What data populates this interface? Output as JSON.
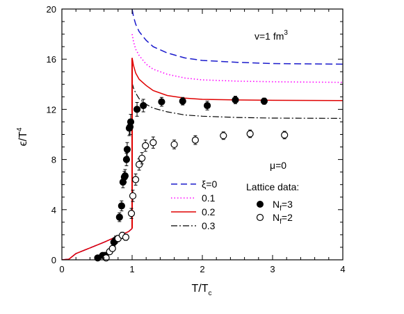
{
  "chart_data": {
    "type": "line",
    "xlabel": "T/T",
    "xlabel_sub": "c",
    "ylabel": "ϵ/T",
    "ylabel_sup": "4",
    "xlim": [
      0,
      4
    ],
    "ylim": [
      0,
      20
    ],
    "xticks": [
      0,
      1,
      2,
      3,
      4
    ],
    "yticks": [
      0,
      4,
      8,
      12,
      16,
      20
    ],
    "grid": false,
    "annotations": {
      "volume": {
        "prefix": "v=1 fm",
        "sup": "3"
      },
      "mu": "μ=0",
      "lattice_title": "Lattice data:"
    },
    "series": [
      {
        "name": "ξ=0",
        "style": "dashed",
        "color": "#1a1acc",
        "below": [
          [
            0.0,
            0.0
          ],
          [
            0.1,
            0.05
          ],
          [
            0.2,
            0.5
          ],
          [
            0.4,
            0.95
          ],
          [
            0.6,
            1.4
          ],
          [
            0.8,
            1.9
          ],
          [
            0.95,
            2.25
          ],
          [
            1.0,
            2.5
          ]
        ],
        "above": [
          [
            1.0,
            20.0
          ],
          [
            1.02,
            19.4
          ],
          [
            1.05,
            18.8
          ],
          [
            1.1,
            18.2
          ],
          [
            1.2,
            17.5
          ],
          [
            1.3,
            17.0
          ],
          [
            1.5,
            16.5
          ],
          [
            1.75,
            16.1
          ],
          [
            2.0,
            15.9
          ],
          [
            2.5,
            15.75
          ],
          [
            3.0,
            15.65
          ],
          [
            4.0,
            15.6
          ]
        ]
      },
      {
        "name": "0.1",
        "style": "dotted",
        "color": "#ff00ff",
        "below": [
          [
            0.0,
            0.0
          ],
          [
            0.1,
            0.05
          ],
          [
            0.2,
            0.5
          ],
          [
            0.4,
            0.95
          ],
          [
            0.6,
            1.4
          ],
          [
            0.8,
            1.9
          ],
          [
            0.95,
            2.25
          ],
          [
            1.0,
            2.5
          ]
        ],
        "above": [
          [
            1.0,
            18.0
          ],
          [
            1.02,
            17.4
          ],
          [
            1.05,
            16.8
          ],
          [
            1.1,
            16.3
          ],
          [
            1.2,
            15.6
          ],
          [
            1.3,
            15.2
          ],
          [
            1.5,
            14.8
          ],
          [
            1.75,
            14.5
          ],
          [
            2.0,
            14.35
          ],
          [
            2.5,
            14.25
          ],
          [
            3.0,
            14.2
          ],
          [
            4.0,
            14.15
          ]
        ]
      },
      {
        "name": "0.2",
        "style": "solid",
        "color": "#e00000",
        "below": [
          [
            0.0,
            0.0
          ],
          [
            0.1,
            0.05
          ],
          [
            0.2,
            0.5
          ],
          [
            0.4,
            0.95
          ],
          [
            0.6,
            1.4
          ],
          [
            0.8,
            1.9
          ],
          [
            0.95,
            2.25
          ],
          [
            1.0,
            2.5
          ]
        ],
        "above": [
          [
            1.0,
            16.1
          ],
          [
            1.02,
            15.5
          ],
          [
            1.05,
            14.9
          ],
          [
            1.1,
            14.4
          ],
          [
            1.2,
            13.9
          ],
          [
            1.3,
            13.5
          ],
          [
            1.5,
            13.1
          ],
          [
            1.75,
            12.9
          ],
          [
            2.0,
            12.8
          ],
          [
            2.5,
            12.75
          ],
          [
            3.0,
            12.72
          ],
          [
            4.0,
            12.7
          ]
        ]
      },
      {
        "name": "0.3",
        "style": "dashdot",
        "color": "#000000",
        "below": [
          [
            0.0,
            0.0
          ],
          [
            0.1,
            0.05
          ],
          [
            0.2,
            0.5
          ],
          [
            0.4,
            0.95
          ],
          [
            0.6,
            1.4
          ],
          [
            0.8,
            1.9
          ],
          [
            0.95,
            2.25
          ],
          [
            1.0,
            2.5
          ]
        ],
        "above": [
          [
            1.0,
            14.1
          ],
          [
            1.02,
            13.7
          ],
          [
            1.05,
            13.3
          ],
          [
            1.1,
            12.85
          ],
          [
            1.2,
            12.4
          ],
          [
            1.3,
            12.1
          ],
          [
            1.5,
            11.8
          ],
          [
            1.75,
            11.55
          ],
          [
            2.0,
            11.45
          ],
          [
            2.5,
            11.35
          ],
          [
            3.0,
            11.3
          ],
          [
            4.0,
            11.28
          ]
        ]
      }
    ],
    "lattice_series": [
      {
        "name": "N",
        "name_sub": "f",
        "name_suffix": "=3",
        "marker": "filled",
        "points": [
          [
            0.51,
            0.15,
            0.0
          ],
          [
            0.58,
            0.35,
            0.0
          ],
          [
            0.62,
            0.3,
            0.3
          ],
          [
            0.74,
            1.4,
            0.3
          ],
          [
            0.77,
            1.6,
            0.3
          ],
          [
            0.82,
            3.4,
            0.35
          ],
          [
            0.85,
            4.3,
            0.4
          ],
          [
            0.87,
            6.2,
            0.45
          ],
          [
            0.89,
            6.6,
            0.45
          ],
          [
            0.9,
            6.7,
            0.5
          ],
          [
            0.92,
            8.0,
            0.5
          ],
          [
            0.93,
            8.8,
            0.55
          ],
          [
            0.96,
            10.5,
            0.6
          ],
          [
            0.97,
            10.6,
            0.6
          ],
          [
            0.98,
            11.0,
            0.6
          ],
          [
            1.07,
            12.0,
            0.55
          ],
          [
            1.16,
            12.3,
            0.5
          ],
          [
            1.42,
            12.6,
            0.35
          ],
          [
            1.72,
            12.65,
            0.3
          ],
          [
            2.07,
            12.3,
            0.35
          ],
          [
            2.47,
            12.75,
            0.3
          ],
          [
            2.88,
            12.65,
            0.25
          ]
        ]
      },
      {
        "name": "N",
        "name_sub": "f",
        "name_suffix": "=2",
        "marker": "open",
        "points": [
          [
            0.63,
            0.15,
            0.15
          ],
          [
            0.68,
            0.65,
            0.15
          ],
          [
            0.72,
            0.9,
            0.2
          ],
          [
            0.8,
            1.7,
            0.25
          ],
          [
            0.86,
            1.95,
            0.25
          ],
          [
            0.91,
            1.8,
            0.25
          ],
          [
            0.99,
            3.7,
            0.4
          ],
          [
            1.01,
            5.1,
            0.45
          ],
          [
            1.05,
            6.4,
            0.45
          ],
          [
            1.1,
            7.6,
            0.45
          ],
          [
            1.14,
            8.1,
            0.45
          ],
          [
            1.19,
            9.1,
            0.45
          ],
          [
            1.3,
            9.35,
            0.45
          ],
          [
            1.6,
            9.2,
            0.35
          ],
          [
            1.9,
            9.55,
            0.35
          ],
          [
            2.3,
            9.9,
            0.3
          ],
          [
            2.68,
            10.05,
            0.3
          ],
          [
            3.17,
            9.95,
            0.3
          ]
        ]
      }
    ]
  }
}
